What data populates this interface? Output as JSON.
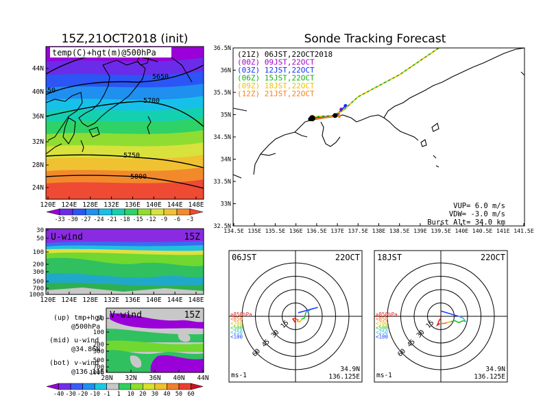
{
  "chart_data": [
    {
      "type": "heatmap",
      "title": "15Z,21OCT2018 (init)",
      "label": "temp(C)+hgt(m)@500hPa",
      "x_ticks": [
        "120E",
        "124E",
        "128E",
        "132E",
        "136E",
        "140E",
        "144E",
        "148E"
      ],
      "y_ticks": [
        "24N",
        "28N",
        "32N",
        "36N",
        "40N",
        "44N"
      ],
      "xlim": [
        120,
        150
      ],
      "ylim": [
        22,
        48
      ],
      "contour_labels": [
        "5650",
        "5700",
        "5750",
        "5800",
        "50"
      ],
      "colorbar_labels": [
        "-33",
        "-30",
        "-27",
        "-24",
        "-21",
        "-18",
        "-15",
        "-12",
        "-9",
        "-6",
        "-3"
      ],
      "colors": [
        "#9a00d8",
        "#6a2ce8",
        "#2b55f5",
        "#1f8ff0",
        "#17c0e8",
        "#14d0b0",
        "#2fd266",
        "#8fdd32",
        "#d9e23c",
        "#f0c232",
        "#f28a2c",
        "#ef4a34"
      ]
    },
    {
      "type": "heatmap",
      "label": "U-wind",
      "time_label": "15Z",
      "x_ticks": [
        "120E",
        "124E",
        "128E",
        "132E",
        "136E",
        "140E",
        "144E",
        "148E"
      ],
      "y_ticks": [
        "30",
        "50",
        "100",
        "200",
        "300",
        "500",
        "700",
        "1000"
      ]
    },
    {
      "type": "heatmap",
      "label": "V-wind",
      "time_label": "15Z",
      "x_ticks": [
        "28N",
        "32N",
        "36N",
        "40N",
        "44N"
      ],
      "y_ticks": [
        "50",
        "100",
        "200",
        "300",
        "500",
        "700",
        "1000"
      ],
      "colorbar_labels": [
        "-40",
        "-30",
        "-20",
        "-10",
        "-1",
        "1",
        "10",
        "20",
        "30",
        "40",
        "50",
        "60"
      ],
      "colors": [
        "#9a00d8",
        "#7030e8",
        "#3c5cf5",
        "#2090f0",
        "#20c8e0",
        "#c8c8c8",
        "#30d060",
        "#90dd30",
        "#d8e030",
        "#f0c030",
        "#f08030",
        "#e84030",
        "#d01020"
      ]
    },
    {
      "type": "line",
      "title": "Sonde Tracking Forecast",
      "x_ticks": [
        "134.5E",
        "135E",
        "135.5E",
        "136E",
        "136.5E",
        "137E",
        "137.5E",
        "138E",
        "138.5E",
        "139E",
        "139.5E",
        "140E",
        "140.5E",
        "141E",
        "141.5E"
      ],
      "y_ticks": [
        "32.5N",
        "33N",
        "33.5N",
        "34N",
        "34.5N",
        "35N",
        "35.5N",
        "36N",
        "36.5N"
      ],
      "xlim": [
        134.5,
        141.5
      ],
      "ylim": [
        32.5,
        36.5
      ],
      "legend": [
        {
          "label": "(21Z)  06JST,22OCT2018",
          "color": "#000000"
        },
        {
          "label": "(00Z)  09JST,22OCT",
          "color": "#a000c8"
        },
        {
          "label": "(03Z)  12JST,22OCT",
          "color": "#1030ff"
        },
        {
          "label": "(06Z)  15JST,22OCT",
          "color": "#10b010"
        },
        {
          "label": "(09Z)  18JST,22OCT",
          "color": "#f0c000"
        },
        {
          "label": "(12Z)  21JST,22OCT",
          "color": "#f08020"
        }
      ],
      "series": [
        {
          "color": "#000000",
          "x": [
            136.35,
            136.6,
            136.95
          ],
          "y": [
            34.9,
            34.95,
            34.98
          ]
        },
        {
          "color": "#a000c8",
          "x": [
            136.4,
            136.6,
            137.0,
            137.1
          ],
          "y": [
            34.9,
            34.93,
            35.0,
            35.12
          ]
        },
        {
          "color": "#1030ff",
          "x": [
            136.4,
            136.7,
            137.0,
            137.1,
            137.2
          ],
          "y": [
            34.92,
            34.95,
            34.98,
            35.1,
            35.2
          ]
        },
        {
          "color": "#10b010",
          "x": [
            136.4,
            136.9,
            137.15,
            137.5,
            138.5,
            139.6,
            140.3
          ],
          "y": [
            34.95,
            34.98,
            35.1,
            35.4,
            35.9,
            36.6,
            37.2
          ]
        },
        {
          "color": "#f0c000",
          "x": [
            136.4,
            136.9,
            137.15,
            137.5,
            138.5,
            139.6,
            140.3
          ],
          "y": [
            34.95,
            34.98,
            35.1,
            35.4,
            35.9,
            36.6,
            37.2
          ]
        },
        {
          "color": "#f08020",
          "x": [
            136.4,
            136.6,
            136.9,
            137.05
          ],
          "y": [
            34.9,
            34.92,
            34.95,
            34.97
          ]
        }
      ],
      "params": [
        "VUP=  6.0 m/s",
        "VDW= -3.0 m/s",
        "Burst Alt= 34.0 km"
      ]
    },
    {
      "type": "scatter",
      "label": "06JST",
      "date": "22OCT",
      "ring_labels": [
        "15",
        "30",
        "45",
        "60"
      ],
      "pressure_legend": [
        {
          "label": "≧850hPa",
          "color": "#e02020"
        },
        {
          "label": "<850",
          "color": "#f07020"
        },
        {
          "label": "<700",
          "color": "#e0c000"
        },
        {
          "label": "<500",
          "color": "#20c020"
        },
        {
          "label": "<250",
          "color": "#20c0e0"
        },
        {
          "label": "<100",
          "color": "#2040ff"
        }
      ],
      "location": "34.9N",
      "location2": "136.125E",
      "unit": "ms-1",
      "hodograph": [
        {
          "color": "#e02020",
          "points": [
            [
              0,
              -2
            ],
            [
              -3,
              -3
            ],
            [
              -1,
              -6
            ],
            [
              1,
              -3
            ]
          ]
        },
        {
          "color": "#f07020",
          "points": [
            [
              1,
              -3
            ],
            [
              3,
              -4
            ],
            [
              2,
              -6
            ]
          ]
        },
        {
          "color": "#e0c000",
          "points": [
            [
              2,
              -6
            ],
            [
              5,
              -6
            ],
            [
              7,
              -3
            ]
          ]
        },
        {
          "color": "#20c020",
          "points": [
            [
              7,
              -3
            ],
            [
              10,
              -2
            ],
            [
              11,
              2
            ],
            [
              12,
              5
            ]
          ]
        },
        {
          "color": "#20c0e0",
          "points": [
            [
              12,
              5
            ],
            [
              15,
              6
            ],
            [
              17,
              8
            ]
          ]
        },
        {
          "color": "#2040ff",
          "points": [
            [
              17,
              8
            ],
            [
              25,
              10
            ],
            [
              3,
              4
            ]
          ]
        }
      ]
    },
    {
      "type": "scatter",
      "label": "18JST",
      "date": "22OCT",
      "ring_labels": [
        "15",
        "30",
        "45",
        "60"
      ],
      "pressure_legend": [
        {
          "label": "≧850hPa",
          "color": "#e02020"
        },
        {
          "label": "<850",
          "color": "#f07020"
        },
        {
          "label": "<700",
          "color": "#e0c000"
        },
        {
          "label": "<500",
          "color": "#20c020"
        },
        {
          "label": "<250",
          "color": "#20c0e0"
        },
        {
          "label": "<100",
          "color": "#2040ff"
        }
      ],
      "location": "34.9N",
      "location2": "136.125E",
      "unit": "ms-1",
      "hodograph": [
        {
          "color": "#e02020",
          "points": [
            [
              0,
              -2
            ],
            [
              -2,
              -5
            ],
            [
              -4,
              -10
            ],
            [
              -1,
              -8
            ]
          ]
        },
        {
          "color": "#f07020",
          "points": [
            [
              -1,
              -8
            ],
            [
              4,
              -8
            ],
            [
              7,
              -7
            ]
          ]
        },
        {
          "color": "#e0c000",
          "points": [
            [
              7,
              -7
            ],
            [
              11,
              -6
            ]
          ]
        },
        {
          "color": "#20c020",
          "points": [
            [
              11,
              -6
            ],
            [
              16,
              -5
            ],
            [
              20,
              -7
            ],
            [
              25,
              -5
            ],
            [
              28,
              -6
            ]
          ]
        },
        {
          "color": "#20c0e0",
          "points": [
            [
              28,
              -6
            ],
            [
              25,
              -2
            ],
            [
              20,
              0
            ]
          ]
        },
        {
          "color": "#2040ff",
          "points": [
            [
              20,
              0
            ],
            [
              10,
              3
            ],
            [
              0,
              6
            ]
          ]
        }
      ]
    }
  ],
  "bottom_notes": [
    "(up) tmp+hgt",
    "@500hPa",
    "(mid) u-wind",
    "@34.86N",
    "(bot) v-wind",
    "@136.11E"
  ]
}
